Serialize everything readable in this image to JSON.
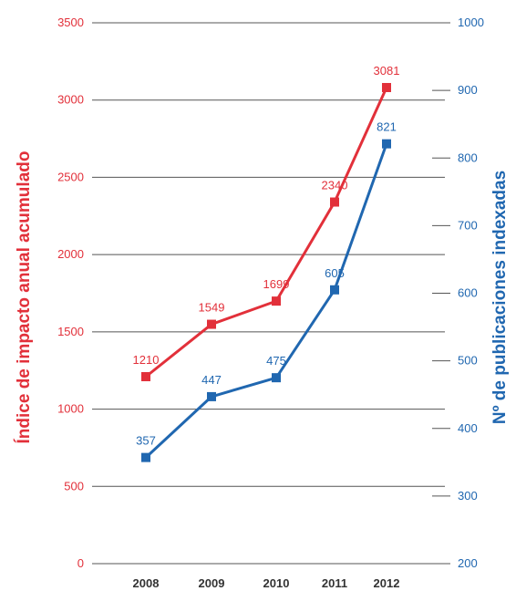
{
  "chart_data": {
    "type": "line",
    "categories": [
      "2008",
      "2009",
      "2010",
      "2011",
      "2012"
    ],
    "series": [
      {
        "values": [
          1210,
          1549,
          1699,
          2340,
          3081
        ],
        "axis": "left",
        "color": "#e2303a"
      },
      {
        "values": [
          357,
          447,
          475,
          605,
          821
        ],
        "axis": "right",
        "color": "#2067b0"
      }
    ],
    "ylabel": "Índice  de impacto anual acumulado",
    "ylabel_right": "Nº de publicaciones indexadas",
    "ylim": [
      0,
      3500
    ],
    "ylim_right": [
      200,
      1000
    ],
    "yticks": [
      "0",
      "500",
      "1000",
      "1500",
      "2000",
      "2500",
      "3000",
      "3500"
    ],
    "yticks_right": [
      "200",
      "300",
      "400",
      "500",
      "600",
      "700",
      "800",
      "900",
      "1000"
    ],
    "grid": true
  }
}
